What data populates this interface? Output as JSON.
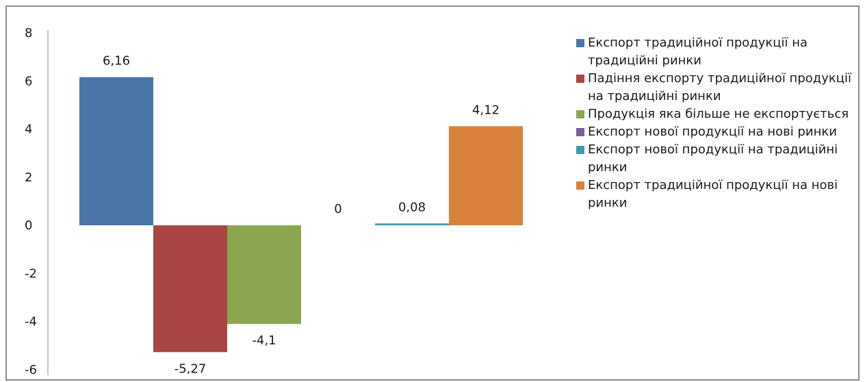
{
  "chart_data": {
    "type": "bar",
    "title": "",
    "xlabel": "",
    "ylabel": "",
    "ylim": [
      -6,
      8
    ],
    "yticks": [
      "8",
      "6",
      "4",
      "2",
      "0",
      "-2",
      "-4",
      "-6"
    ],
    "ytick_values": [
      8,
      6,
      4,
      2,
      0,
      -2,
      -4,
      -6
    ],
    "grid": false,
    "legend_position": "right",
    "series": [
      {
        "name": "Експорт традиційної продукції на традиційні ринки",
        "value": 6.16,
        "label": "6,16",
        "color": "#4a76a8"
      },
      {
        "name": "Падіння експорту традиційної продукції на традиційні ринки",
        "value": -5.27,
        "label": "-5,27",
        "color": "#a84643"
      },
      {
        "name": "Продукція яка більше не експортується",
        "value": -4.1,
        "label": "-4,1",
        "color": "#8ba64e"
      },
      {
        "name": "Експорт нової продукції на нові ринки",
        "value": 0,
        "label": "0",
        "color": "#7a5f9a"
      },
      {
        "name": "Експорт нової продукції на традиційні ринки",
        "value": 0.08,
        "label": "0,08",
        "color": "#3c9bb3"
      },
      {
        "name": "Експорт традиційної продукції на нові ринки",
        "value": 4.12,
        "label": "4,12",
        "color": "#d9823b"
      }
    ]
  }
}
